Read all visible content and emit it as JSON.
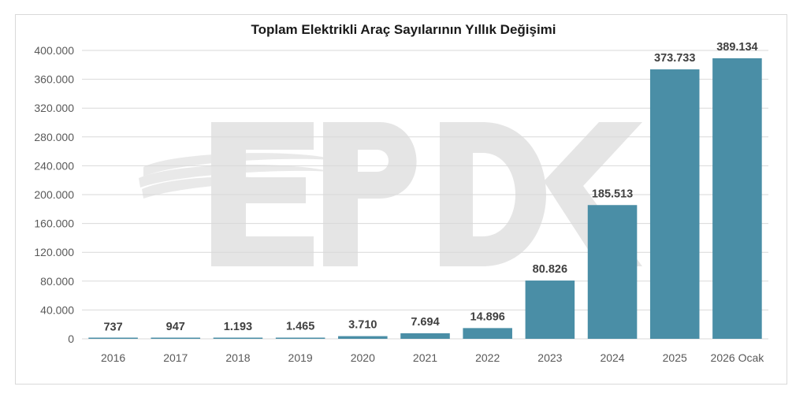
{
  "chart_data": {
    "type": "bar",
    "title": "Toplam Elektrikli Araç Sayılarının Yıllık Değişimi",
    "xlabel": "",
    "ylabel": "",
    "categories": [
      "2016",
      "2017",
      "2018",
      "2019",
      "2020",
      "2021",
      "2022",
      "2023",
      "2024",
      "2025",
      "2026 Ocak"
    ],
    "values": [
      737,
      947,
      1193,
      1465,
      3710,
      7694,
      14896,
      80826,
      185513,
      373733,
      389134
    ],
    "data_labels": [
      "737",
      "947",
      "1.193",
      "1.465",
      "3.710",
      "7.694",
      "14.896",
      "80.826",
      "185.513",
      "373.733",
      "389.134"
    ],
    "yticks": [
      0,
      40000,
      80000,
      120000,
      160000,
      200000,
      240000,
      280000,
      320000,
      360000,
      400000
    ],
    "ytick_labels": [
      "0",
      "40.000",
      "80.000",
      "120.000",
      "160.000",
      "200.000",
      "240.000",
      "280.000",
      "320.000",
      "360.000",
      "400.000"
    ],
    "ylim": [
      0,
      400000
    ],
    "grid": true,
    "legend": "none",
    "bar_color": "#4a8ea6",
    "grid_color": "#d9d9d9",
    "watermark": "EPDK"
  }
}
